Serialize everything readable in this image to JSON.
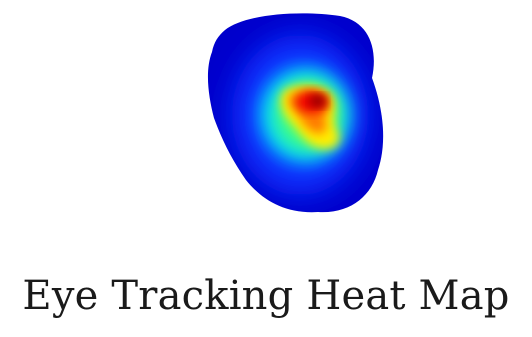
{
  "caption": "Eye Tracking Heat Map",
  "colors": {
    "background": "#ffffff",
    "outer": "#0000cc",
    "blue": "#1030ff",
    "cyan": "#00d8ff",
    "green": "#40ff80",
    "yellow": "#ffee00",
    "orange": "#ff7a00",
    "red": "#ee0000",
    "dark_red": "#8a0000"
  }
}
